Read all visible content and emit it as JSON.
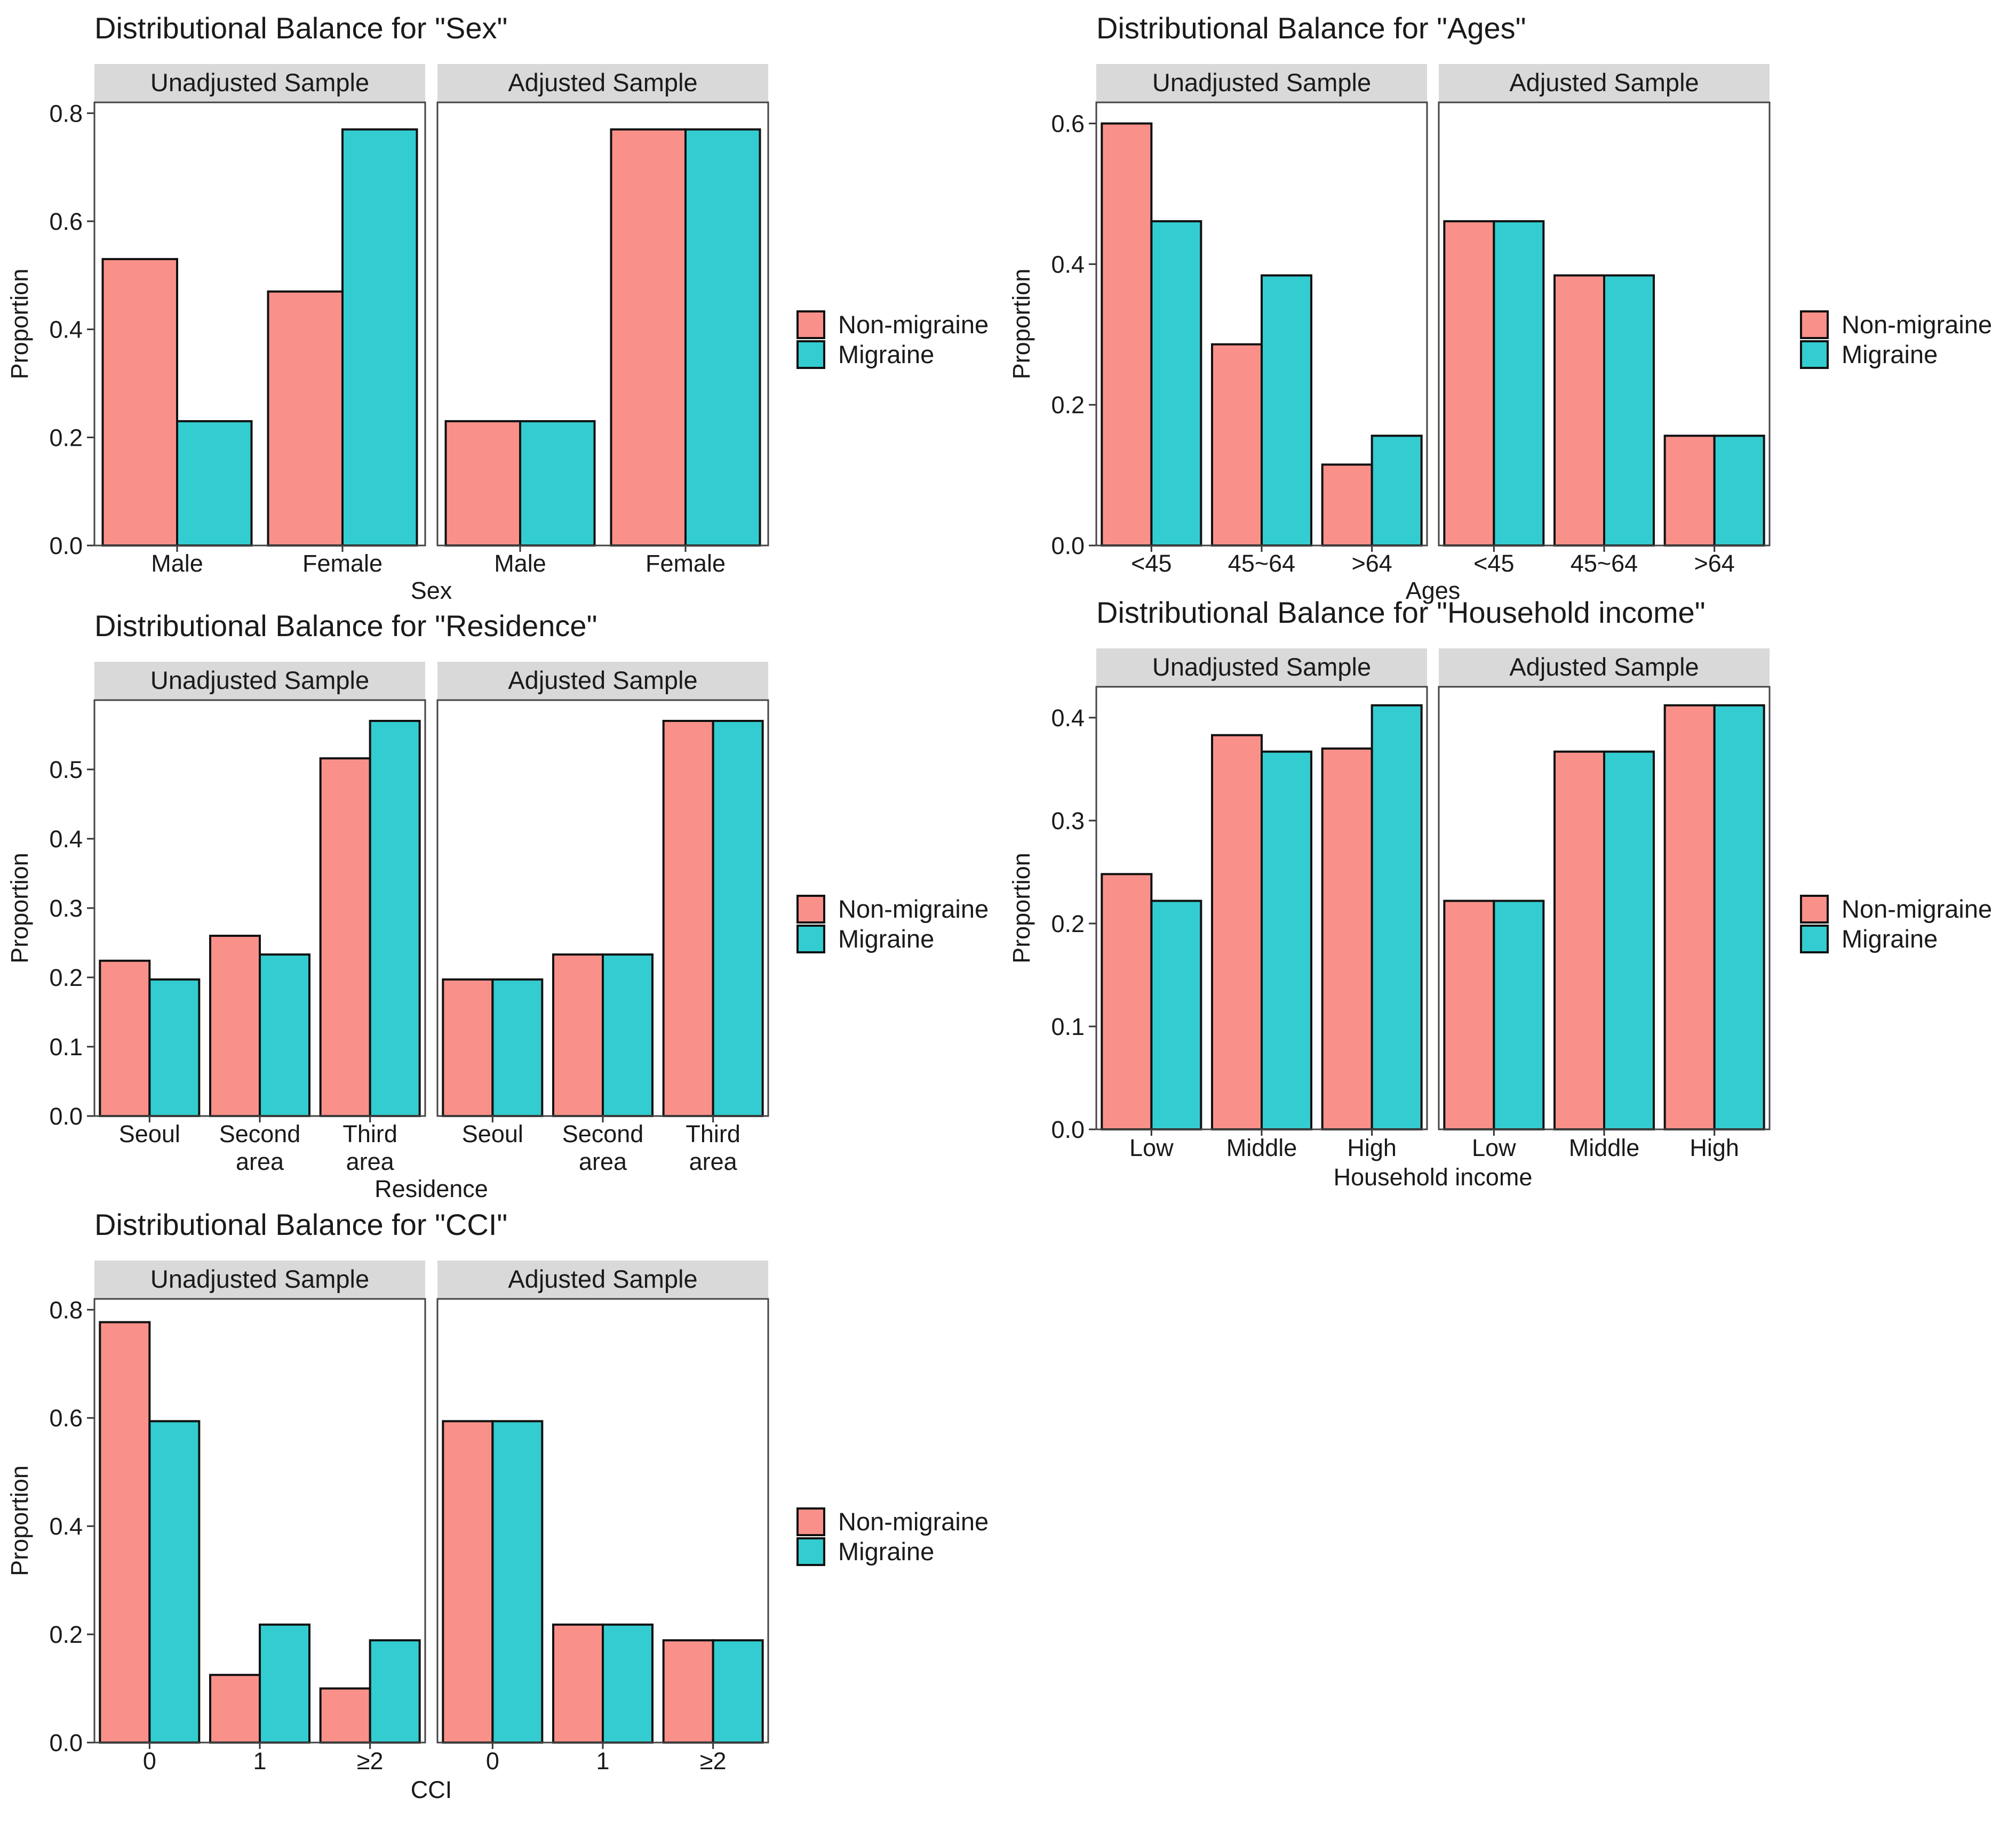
{
  "legend": {
    "groups": [
      {
        "name": "Non-migraine",
        "color": "#F8766D"
      },
      {
        "name": "Migraine",
        "color": "#00BFC4"
      }
    ]
  },
  "chart_data": [
    {
      "type": "bar",
      "title": "Distributional Balance for \"Sex\"",
      "xlabel": "Sex",
      "ylabel": "Proportion",
      "ylim": [
        0,
        0.82
      ],
      "yticks": [
        "0.0",
        "0.2",
        "0.4",
        "0.6",
        "0.8"
      ],
      "panels": [
        {
          "label": "Unadjusted Sample",
          "categories": [
            "Male",
            "Female"
          ],
          "series": [
            {
              "name": "Non-migraine",
              "values": [
                0.53,
                0.47
              ]
            },
            {
              "name": "Migraine",
              "values": [
                0.23,
                0.77
              ]
            }
          ]
        },
        {
          "label": "Adjusted Sample",
          "categories": [
            "Male",
            "Female"
          ],
          "series": [
            {
              "name": "Non-migraine",
              "values": [
                0.23,
                0.77
              ]
            },
            {
              "name": "Migraine",
              "values": [
                0.23,
                0.77
              ]
            }
          ]
        }
      ]
    },
    {
      "type": "bar",
      "title": "Distributional Balance for \"Ages\"",
      "xlabel": "Ages",
      "ylabel": "Proportion",
      "ylim": [
        0,
        0.63
      ],
      "yticks": [
        "0.0",
        "0.2",
        "0.4",
        "0.6"
      ],
      "panels": [
        {
          "label": "Unadjusted Sample",
          "categories": [
            "<45",
            "45~64",
            ">64"
          ],
          "series": [
            {
              "name": "Non-migraine",
              "values": [
                0.6,
                0.286,
                0.115
              ]
            },
            {
              "name": "Migraine",
              "values": [
                0.461,
                0.384,
                0.156
              ]
            }
          ]
        },
        {
          "label": "Adjusted Sample",
          "categories": [
            "<45",
            "45~64",
            ">64"
          ],
          "series": [
            {
              "name": "Non-migraine",
              "values": [
                0.461,
                0.384,
                0.156
              ]
            },
            {
              "name": "Migraine",
              "values": [
                0.461,
                0.384,
                0.156
              ]
            }
          ]
        }
      ]
    },
    {
      "type": "bar",
      "title": "Distributional Balance for \"Residence\"",
      "xlabel": "Residence",
      "ylabel": "Proportion",
      "ylim": [
        0,
        0.6
      ],
      "yticks": [
        "0.0",
        "0.1",
        "0.2",
        "0.3",
        "0.4",
        "0.5"
      ],
      "panels": [
        {
          "label": "Unadjusted Sample",
          "categories": [
            "Seoul",
            "Second area",
            "Third area"
          ],
          "series": [
            {
              "name": "Non-migraine",
              "values": [
                0.224,
                0.26,
                0.516
              ]
            },
            {
              "name": "Migraine",
              "values": [
                0.197,
                0.233,
                0.57
              ]
            }
          ]
        },
        {
          "label": "Adjusted Sample",
          "categories": [
            "Seoul",
            "Second area",
            "Third area"
          ],
          "series": [
            {
              "name": "Non-migraine",
              "values": [
                0.197,
                0.233,
                0.57
              ]
            },
            {
              "name": "Migraine",
              "values": [
                0.197,
                0.233,
                0.57
              ]
            }
          ]
        }
      ]
    },
    {
      "type": "bar",
      "title": "Distributional Balance for \"Household income\"",
      "xlabel": "Household income",
      "ylabel": "Proportion",
      "ylim": [
        0,
        0.43
      ],
      "yticks": [
        "0.0",
        "0.1",
        "0.2",
        "0.3",
        "0.4"
      ],
      "panels": [
        {
          "label": "Unadjusted Sample",
          "categories": [
            "Low",
            "Middle",
            "High"
          ],
          "series": [
            {
              "name": "Non-migraine",
              "values": [
                0.248,
                0.383,
                0.37
              ]
            },
            {
              "name": "Migraine",
              "values": [
                0.222,
                0.367,
                0.412
              ]
            }
          ]
        },
        {
          "label": "Adjusted Sample",
          "categories": [
            "Low",
            "Middle",
            "High"
          ],
          "series": [
            {
              "name": "Non-migraine",
              "values": [
                0.222,
                0.367,
                0.412
              ]
            },
            {
              "name": "Migraine",
              "values": [
                0.222,
                0.367,
                0.412
              ]
            }
          ]
        }
      ]
    },
    {
      "type": "bar",
      "title": "Distributional Balance for \"CCI\"",
      "xlabel": "CCI",
      "ylabel": "Proportion",
      "ylim": [
        0,
        0.82
      ],
      "yticks": [
        "0.0",
        "0.2",
        "0.4",
        "0.6",
        "0.8"
      ],
      "panels": [
        {
          "label": "Unadjusted Sample",
          "categories": [
            "0",
            "1",
            "≥2"
          ],
          "series": [
            {
              "name": "Non-migraine",
              "values": [
                0.777,
                0.125,
                0.1
              ]
            },
            {
              "name": "Migraine",
              "values": [
                0.594,
                0.218,
                0.189
              ]
            }
          ]
        },
        {
          "label": "Adjusted Sample",
          "categories": [
            "0",
            "1",
            "≥2"
          ],
          "series": [
            {
              "name": "Non-migraine",
              "values": [
                0.594,
                0.218,
                0.189
              ]
            },
            {
              "name": "Migraine",
              "values": [
                0.594,
                0.218,
                0.189
              ]
            }
          ]
        }
      ]
    }
  ]
}
